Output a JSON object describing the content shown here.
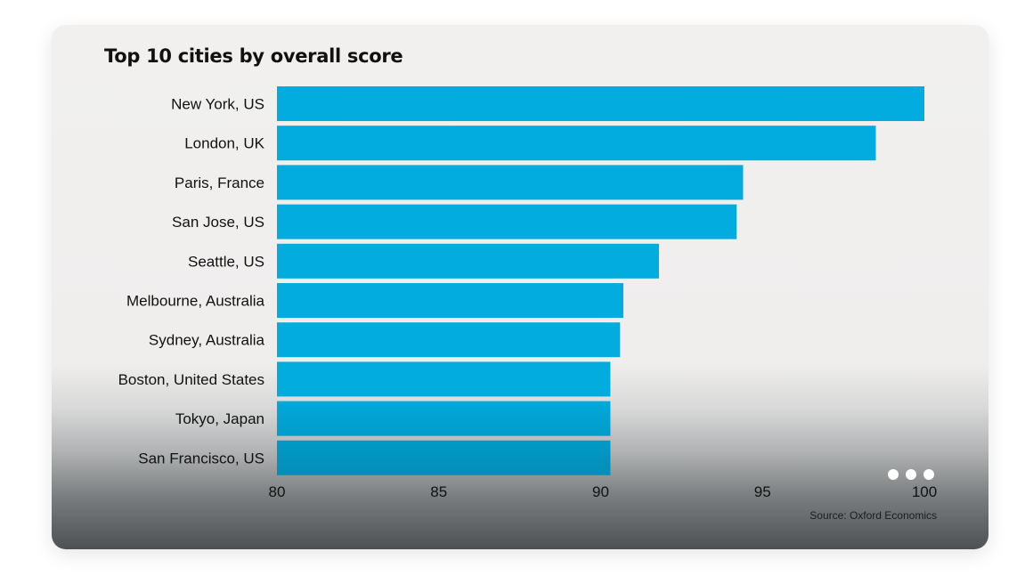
{
  "chart_data": {
    "type": "bar",
    "orientation": "horizontal",
    "title": "Top 10 cities by overall score",
    "categories": [
      "New York, US",
      "London, UK",
      "Paris, France",
      "San Jose, US",
      "Seattle, US",
      "Melbourne, Australia",
      "Sydney, Australia",
      "Boston, United States",
      "Tokyo, Japan",
      "San Francisco, US"
    ],
    "values": [
      100,
      98.5,
      94.4,
      94.2,
      91.8,
      90.7,
      90.6,
      90.3,
      90.3,
      90.3
    ],
    "xlim": [
      80,
      100
    ],
    "xticks": [
      "80",
      "85",
      "90",
      "95",
      "100"
    ],
    "xlabel": "",
    "ylabel": "",
    "grid": false,
    "bar_color": "#02acde",
    "source": "Source: Oxford Economics"
  },
  "carousel": {
    "dot_count": 3,
    "dot_color": "#ffffff"
  }
}
